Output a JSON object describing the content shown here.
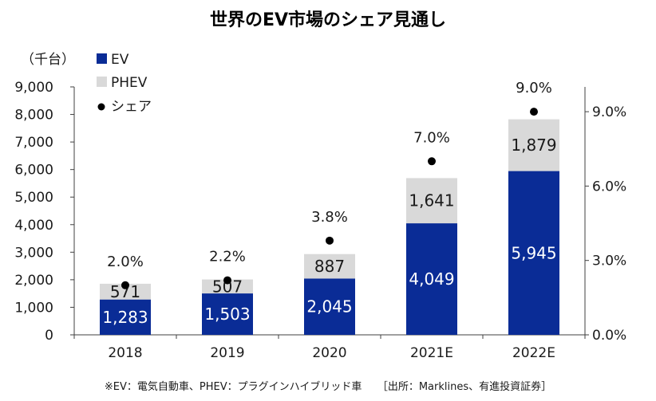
{
  "chart_data": {
    "type": "bar",
    "title": "世界のEV市場のシェア見通し",
    "unit_label": "（千台）",
    "categories": [
      "2018",
      "2019",
      "2020",
      "2021E",
      "2022E"
    ],
    "series": [
      {
        "name": "EV",
        "values": [
          1283,
          1503,
          2045,
          4049,
          5945
        ],
        "color": "#0a2c96",
        "kind": "bar"
      },
      {
        "name": "PHEV",
        "values": [
          571,
          507,
          887,
          1641,
          1879
        ],
        "color": "#d9d9d9",
        "kind": "bar"
      },
      {
        "name": "シェア",
        "values": [
          2.0,
          2.2,
          3.8,
          7.0,
          9.0
        ],
        "color": "#000000",
        "kind": "scatter",
        "axis": "right"
      }
    ],
    "value_labels": {
      "EV": [
        "1,283",
        "1,503",
        "2,045",
        "4,049",
        "5,945"
      ],
      "PHEV": [
        "571",
        "507",
        "887",
        "1,641",
        "1,879"
      ],
      "シェア": [
        "2.0%",
        "2.2%",
        "3.8%",
        "7.0%",
        "9.0%"
      ]
    },
    "ylim": [
      0,
      9000
    ],
    "y_ticks": [
      "0",
      "1,000",
      "2,000",
      "3,000",
      "4,000",
      "5,000",
      "6,000",
      "7,000",
      "8,000",
      "9,000"
    ],
    "y2lim": [
      0,
      10
    ],
    "y2_ticks": [
      {
        "value": 0,
        "label": "0.0%"
      },
      {
        "value": 3,
        "label": "3.0%"
      },
      {
        "value": 6,
        "label": "6.0%"
      },
      {
        "value": 9,
        "label": "9.0%"
      }
    ],
    "stacked": true,
    "legend_position": "top-left",
    "grid": false
  },
  "footnote": "※EV：電気自動車、PHEV：プラグインハイブリッド車　　［出所：Marklines、有進投資証券］"
}
